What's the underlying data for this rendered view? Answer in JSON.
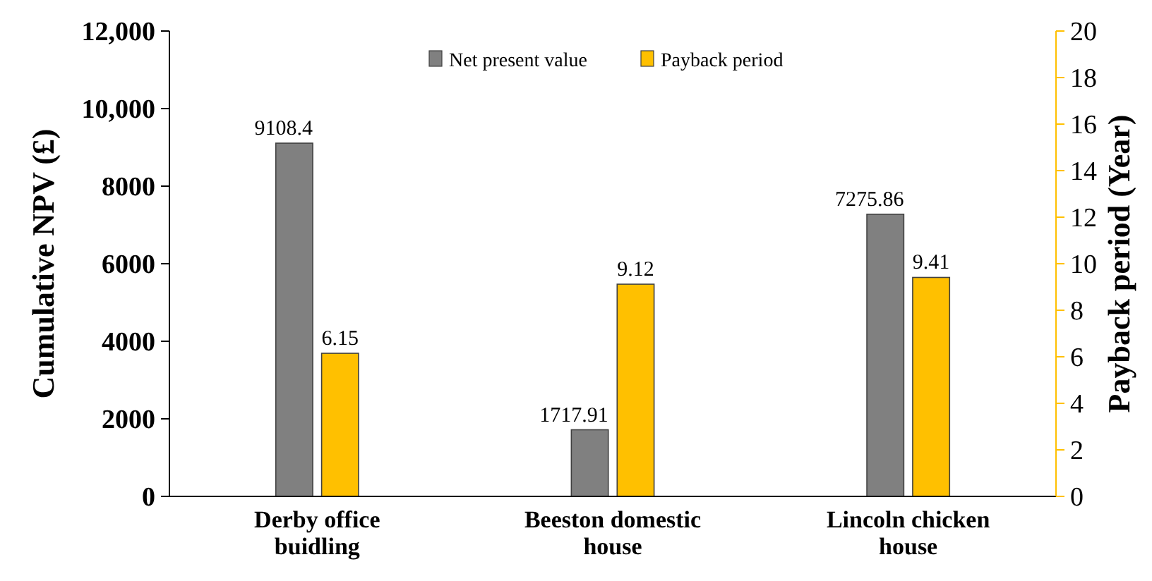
{
  "chart_data": {
    "type": "bar",
    "ylabel": "Cumulative NPV (£)",
    "y2label": "Payback period (Year)",
    "categories": [
      "Derby office buidling",
      "Beeston domestic house",
      "Lincoln chicken house"
    ],
    "series": [
      {
        "name": "Net present value",
        "color": "#808080",
        "values": [
          9108.4,
          1717.91,
          7275.86
        ]
      },
      {
        "name": "Payback period",
        "color": "#ffc000",
        "values": [
          6.15,
          9.12,
          9.41
        ],
        "axis": "y2"
      }
    ],
    "ylim": [
      0,
      12000
    ],
    "yticks": [
      0,
      2000,
      4000,
      6000,
      8000,
      {
        "value": 10000,
        "label": "10,000"
      },
      {
        "value": 12000,
        "label": "12,000"
      }
    ],
    "y2lim": [
      0,
      20
    ],
    "y2ticks": [
      0,
      2,
      4,
      6,
      8,
      10,
      12,
      14,
      16,
      18,
      20
    ],
    "data_labels": true,
    "legend": "top"
  }
}
